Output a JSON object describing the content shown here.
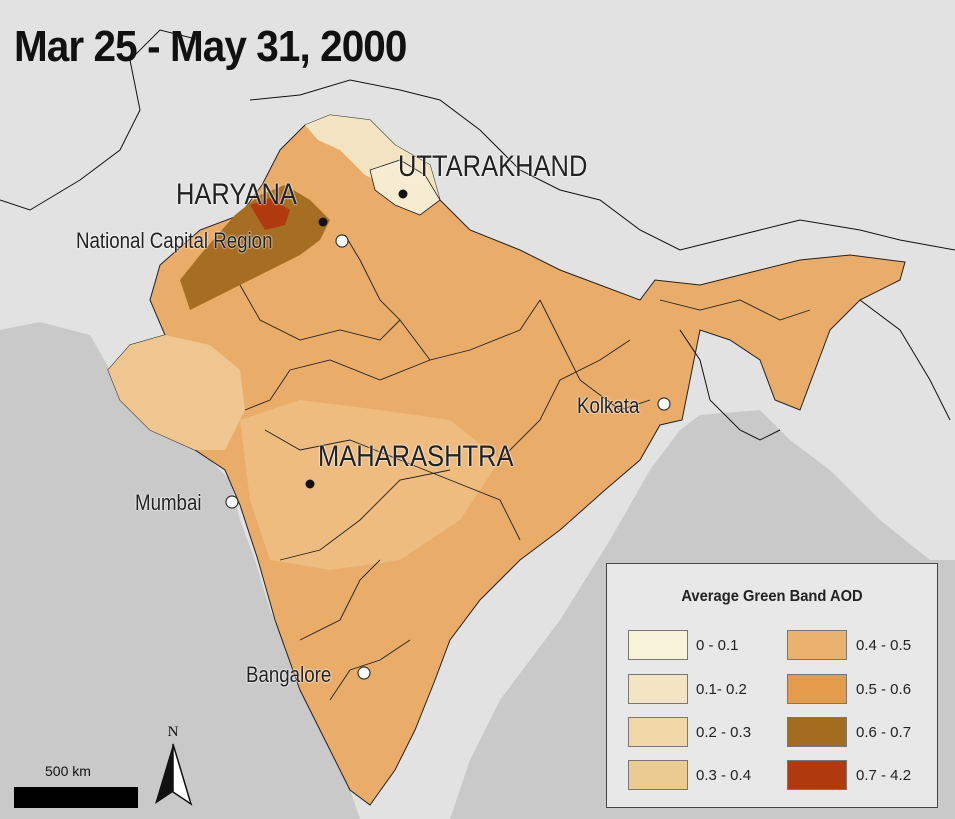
{
  "title": "Mar 25 - May 31, 2000",
  "states": {
    "haryana": "HARYANA",
    "uttarakhand": "UTTARAKHAND",
    "maharashtra": "MAHARASHTRA"
  },
  "cities": {
    "ncr": "National Capital Region",
    "mumbai": "Mumbai",
    "kolkata": "Kolkata",
    "bangalore": "Bangalore"
  },
  "legend": {
    "title": "Average Green Band AOD",
    "items": [
      {
        "label": "0 - 0.1",
        "color": "#f7f4d9"
      },
      {
        "label": "0.1- 0.2",
        "color": "#f3e5c3"
      },
      {
        "label": "0.2 - 0.3",
        "color": "#f1d8a6"
      },
      {
        "label": "0.3 - 0.4",
        "color": "#eccb93"
      },
      {
        "label": "0.4 - 0.5",
        "color": "#ebb16e"
      },
      {
        "label": "0.5 - 0.6",
        "color": "#e49c4b"
      },
      {
        "label": "0.6 - 0.7",
        "color": "#a46c1e"
      },
      {
        "label": "0.7 - 4.2",
        "color": "#b1390e"
      }
    ]
  },
  "scale": {
    "label": "500 km"
  },
  "north": {
    "label": "N"
  },
  "colors": {
    "land": "#e2e2e2",
    "sea": "#c8c8c8",
    "india_base": "#e9ad69"
  }
}
